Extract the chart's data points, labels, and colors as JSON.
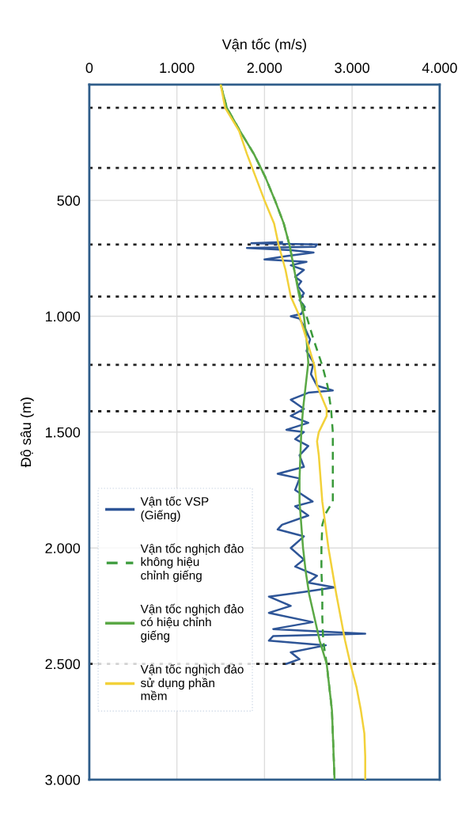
{
  "chart_data": {
    "type": "line",
    "xlabel": "Vận tốc (m/s)",
    "ylabel": "Độ sâu (m)",
    "xlim": [
      0,
      4000
    ],
    "xticks": [
      0,
      {
        "value": 1000,
        "label": "1.000"
      },
      {
        "value": 2000,
        "label": "2.000"
      },
      {
        "value": 3000,
        "label": "3.000"
      },
      {
        "value": 4000,
        "label": "4.000"
      }
    ],
    "ylim": [
      3000,
      0
    ],
    "yticks": [
      500,
      {
        "value": 1000,
        "label": "1.000"
      },
      {
        "value": 1500,
        "label": "1.500"
      },
      {
        "value": 2000,
        "label": "2.000"
      },
      {
        "value": 2500,
        "label": "2.500"
      },
      {
        "value": 3000,
        "label": "3.000"
      }
    ],
    "grid": true,
    "legend": "bottom left",
    "orientation": "horizontal",
    "series": [
      {
        "name": "Vận tốc VSP\n(Giếng)",
        "color": "#2e5597",
        "line_style": "solid",
        "x": [
          680,
          685,
          690,
          700,
          705,
          715,
          725,
          740,
          755,
          765,
          780,
          800,
          830,
          850,
          870,
          900,
          930,
          960,
          990,
          1000,
          1010,
          1050,
          1100,
          1150,
          1200,
          1250,
          1300,
          1320,
          1330,
          1360,
          1400,
          1430,
          1460,
          1490,
          1500,
          1530,
          1560,
          1600,
          1650,
          1680,
          1700,
          1750,
          1800,
          1820,
          1860,
          1900,
          1920,
          1950,
          2000,
          2050,
          2080,
          2120,
          2150,
          2170,
          2190,
          2210,
          2250,
          2280,
          2320,
          2350,
          2370,
          2380,
          2400,
          2420,
          2450,
          2480,
          2500
        ],
        "values": [
          2200,
          1850,
          2600,
          2580,
          1800,
          2300,
          2560,
          2250,
          2000,
          2480,
          2300,
          2450,
          2350,
          2420,
          2380,
          2450,
          2400,
          2460,
          2420,
          2300,
          2400,
          2460,
          2520,
          2480,
          2560,
          2530,
          2600,
          2780,
          2500,
          2300,
          2450,
          2300,
          2500,
          2250,
          2450,
          2350,
          2500,
          2400,
          2450,
          2150,
          2400,
          2350,
          2550,
          2350,
          2500,
          2200,
          2150,
          2450,
          2300,
          2450,
          2350,
          2600,
          2500,
          2800,
          2450,
          2050,
          2300,
          2050,
          2550,
          2100,
          3150,
          2100,
          2050,
          2700,
          2300,
          2400,
          2250
        ]
      },
      {
        "name": "Vận tốc nghịch đảo\nkhông hiệu\nchỉnh giếng",
        "color": "#3a9a3a",
        "line_style": "dashed",
        "x": [
          0,
          100,
          200,
          300,
          400,
          500,
          600,
          700,
          800,
          900,
          1000,
          1100,
          1213,
          1300,
          1400,
          1500,
          1600,
          1700,
          1800,
          1850,
          1900,
          2000,
          2100,
          2200,
          2300,
          2400,
          2500,
          2600,
          2700,
          2800,
          2900,
          3000
        ],
        "values": [
          1500,
          1570,
          1720,
          1880,
          2010,
          2120,
          2220,
          2290,
          2340,
          2400,
          2480,
          2560,
          2660,
          2720,
          2760,
          2780,
          2780,
          2780,
          2780,
          2700,
          2660,
          2650,
          2650,
          2660,
          2660,
          2670,
          2710,
          2740,
          2770,
          2780,
          2790,
          2800
        ]
      },
      {
        "name": "Vận tốc nghịch đảo\ncó hiệu chỉnh\ngiếng",
        "color": "#5aa845",
        "line_style": "solid",
        "x": [
          0,
          100,
          200,
          300,
          400,
          500,
          600,
          700,
          800,
          900,
          1000,
          1100,
          1200,
          1300,
          1400,
          1500,
          1600,
          1700,
          1800,
          1900,
          2000,
          2100,
          2200,
          2300,
          2400,
          2500,
          2600,
          2700,
          2800,
          2900,
          3000
        ],
        "values": [
          1500,
          1570,
          1720,
          1880,
          2010,
          2120,
          2220,
          2290,
          2340,
          2390,
          2450,
          2480,
          2500,
          2470,
          2440,
          2420,
          2410,
          2400,
          2400,
          2420,
          2440,
          2470,
          2510,
          2570,
          2630,
          2710,
          2740,
          2770,
          2780,
          2790,
          2800
        ]
      },
      {
        "name": "Vận tốc nghịch đảo\nsử dụng phần\nmềm",
        "color": "#f2d13a",
        "line_style": "solid",
        "x": [
          0,
          100,
          200,
          300,
          360,
          500,
          600,
          690,
          800,
          915,
          1000,
          1213,
          1300,
          1400,
          1430,
          1500,
          1540,
          1600,
          1800,
          2000,
          2200,
          2400,
          2500,
          2600,
          2700,
          2800,
          2900,
          3000
        ],
        "values": [
          1500,
          1550,
          1710,
          1800,
          1860,
          2000,
          2110,
          2160,
          2240,
          2300,
          2400,
          2570,
          2600,
          2710,
          2710,
          2620,
          2600,
          2620,
          2660,
          2730,
          2820,
          2920,
          2980,
          3050,
          3100,
          3140,
          3150,
          3150
        ]
      }
    ],
    "ref_lines": [
      {
        "axis": "y",
        "value": 100,
        "color": "#222222",
        "line_style": "dotted"
      },
      {
        "axis": "y",
        "value": 360,
        "color": "#222222",
        "line_style": "dotted"
      },
      {
        "axis": "y",
        "value": 690,
        "color": "#222222",
        "line_style": "dotted"
      },
      {
        "axis": "y",
        "value": 915,
        "color": "#222222",
        "line_style": "dotted"
      },
      {
        "axis": "y",
        "value": 1210,
        "color": "#222222",
        "line_style": "dotted"
      },
      {
        "axis": "y",
        "value": 1410,
        "color": "#222222",
        "line_style": "dotted"
      },
      {
        "axis": "y",
        "value": 2500,
        "color": "#222222",
        "line_style": "dotted"
      }
    ]
  }
}
